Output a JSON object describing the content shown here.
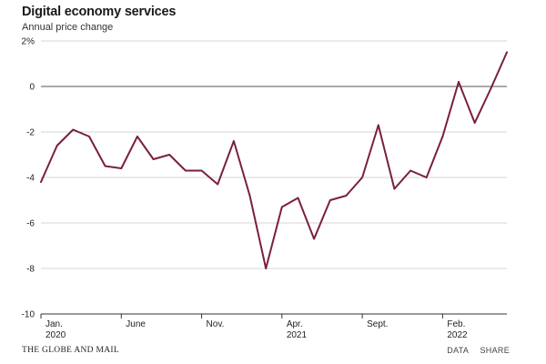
{
  "chart_data": {
    "type": "line",
    "title": "Digital economy services",
    "subtitle": "Annual price change",
    "ylabel": "",
    "xlabel": "",
    "ylim": [
      -10,
      2
    ],
    "y_ticks": [
      2,
      0,
      -2,
      -4,
      -6,
      -8,
      -10
    ],
    "y_tick_labels": [
      "2%",
      "0",
      "-2",
      "-4",
      "-6",
      "-8",
      "-10"
    ],
    "x_ticks": [
      {
        "index": 0,
        "month": "Jan.",
        "year": "2020"
      },
      {
        "index": 5,
        "month": "June",
        "year": ""
      },
      {
        "index": 10,
        "month": "Nov.",
        "year": ""
      },
      {
        "index": 15,
        "month": "Apr.",
        "year": "2021"
      },
      {
        "index": 20,
        "month": "Sept.",
        "year": ""
      },
      {
        "index": 25,
        "month": "Feb.",
        "year": "2022"
      }
    ],
    "series": [
      {
        "name": "Digital economy services",
        "color": "#7a1f3d",
        "values": [
          -4.2,
          -2.6,
          -1.9,
          -2.2,
          -3.5,
          -3.6,
          -2.2,
          -3.2,
          -3.0,
          -3.7,
          -3.7,
          -4.3,
          -2.4,
          -4.8,
          -8.0,
          -5.3,
          -4.9,
          -6.7,
          -5.0,
          -4.8,
          -4.0,
          -1.7,
          -4.5,
          -3.7,
          -4.0,
          -2.2,
          0.2,
          -1.6,
          -0.1,
          1.5
        ]
      }
    ]
  },
  "footer": {
    "source": "THE GLOBE AND MAIL",
    "data_link": "DATA",
    "share_link": "SHARE"
  }
}
